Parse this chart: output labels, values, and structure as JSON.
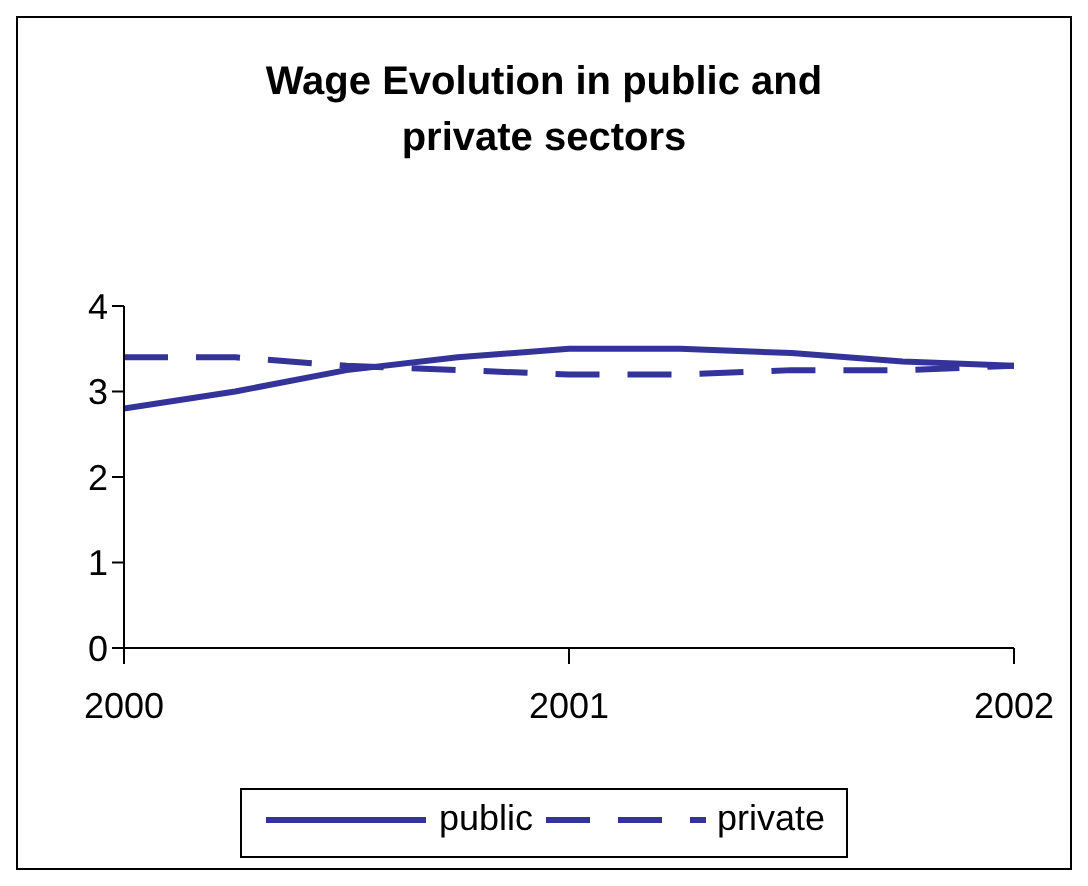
{
  "chart_data": {
    "type": "line",
    "title": "Wage Evolution in public and private sectors",
    "x": [
      2000,
      2000.25,
      2000.5,
      2000.75,
      2001,
      2001.25,
      2001.5,
      2001.75,
      2002
    ],
    "series": [
      {
        "name": "public",
        "color": "#333399",
        "line_style": "solid",
        "values": [
          2.8,
          3.0,
          3.25,
          3.4,
          3.5,
          3.5,
          3.45,
          3.35,
          3.3
        ]
      },
      {
        "name": "private",
        "color": "#333399",
        "line_style": "dashed",
        "values": [
          3.4,
          3.4,
          3.3,
          3.25,
          3.2,
          3.2,
          3.25,
          3.25,
          3.3
        ]
      }
    ],
    "xlim": [
      2000,
      2002
    ],
    "xticks": [
      2000,
      2001,
      2002
    ],
    "ylim": [
      0,
      4
    ],
    "yticks": [
      0,
      1,
      2,
      3,
      4
    ],
    "grid": false,
    "legend": "bottom",
    "marker": "none"
  }
}
